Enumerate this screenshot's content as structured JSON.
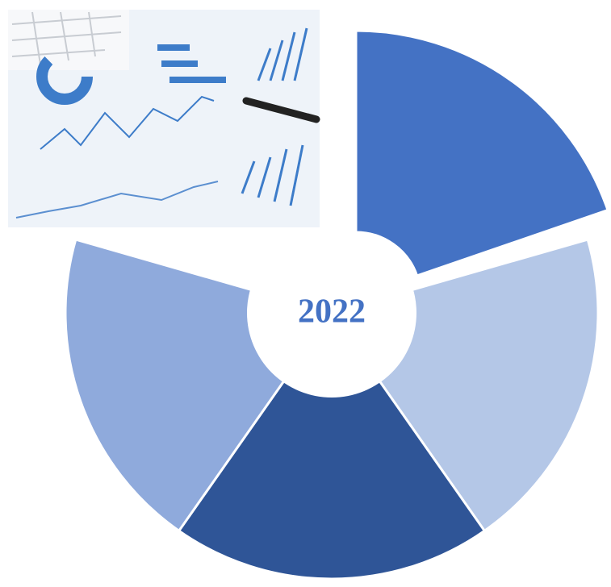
{
  "center_label": "2022"
}
